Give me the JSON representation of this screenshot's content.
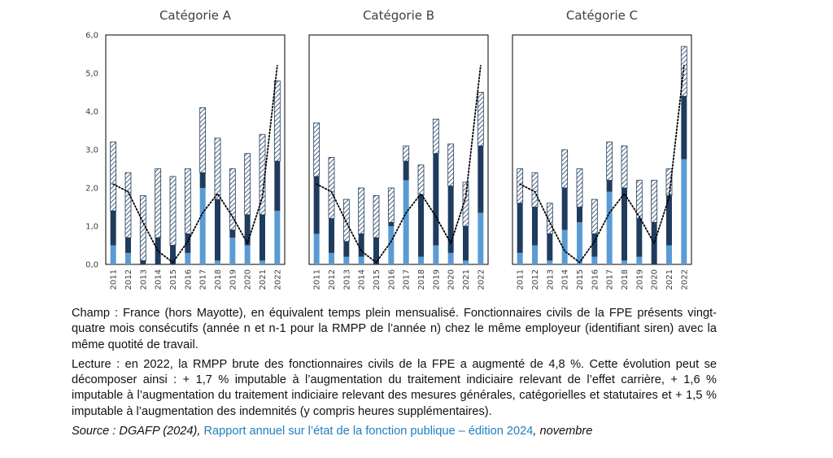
{
  "chart_data": {
    "type": "bar",
    "subtype": "stacked",
    "categories": [
      "2011",
      "2012",
      "2013",
      "2014",
      "2015",
      "2016",
      "2017",
      "2018",
      "2019",
      "2020",
      "2021",
      "2022"
    ],
    "ylim": [
      0,
      6
    ],
    "yticks": [
      "0,0",
      "1,0",
      "2,0",
      "3,0",
      "4,0",
      "5,0",
      "6,0"
    ],
    "colors": {
      "bottom": "#5b9bd5",
      "middle": "#1f3c5e",
      "top_hatch": "#1f3c5e",
      "line": "#000000"
    },
    "panels": [
      {
        "title": "Catégorie A",
        "bottom": [
          0.5,
          0.3,
          0.0,
          0.0,
          0.0,
          0.3,
          2.0,
          0.1,
          0.7,
          0.5,
          0.1,
          1.4
        ],
        "middle": [
          0.9,
          0.4,
          0.1,
          0.7,
          0.5,
          0.5,
          0.4,
          1.6,
          0.2,
          0.8,
          1.2,
          1.3
        ],
        "top": [
          1.8,
          1.7,
          1.7,
          1.8,
          1.8,
          1.7,
          1.7,
          1.6,
          1.6,
          1.6,
          2.1,
          2.1
        ],
        "trend": [
          2.1,
          1.9,
          1.1,
          0.35,
          0.05,
          0.6,
          1.35,
          1.85,
          1.25,
          0.55,
          1.75,
          5.2
        ]
      },
      {
        "title": "Catégorie B",
        "bottom": [
          0.8,
          0.3,
          0.2,
          0.2,
          0.0,
          1.0,
          2.2,
          0.2,
          0.5,
          0.3,
          0.1,
          1.35
        ],
        "middle": [
          1.5,
          0.9,
          0.4,
          0.6,
          0.7,
          0.1,
          0.5,
          1.6,
          2.4,
          1.75,
          0.9,
          1.75
        ],
        "top": [
          1.4,
          1.6,
          1.1,
          1.2,
          1.1,
          0.9,
          0.4,
          0.8,
          0.9,
          1.1,
          1.15,
          1.4
        ],
        "trend": [
          2.1,
          1.9,
          1.1,
          0.35,
          0.05,
          0.6,
          1.35,
          1.85,
          1.25,
          0.55,
          1.75,
          5.2
        ]
      },
      {
        "title": "Catégorie C",
        "bottom": [
          0.3,
          0.5,
          0.1,
          0.9,
          1.1,
          0.2,
          1.9,
          0.1,
          0.2,
          0.0,
          0.5,
          2.75
        ],
        "middle": [
          1.3,
          1.0,
          0.7,
          1.1,
          0.4,
          0.6,
          0.3,
          1.9,
          1.0,
          1.1,
          1.3,
          1.65
        ],
        "top": [
          0.9,
          0.9,
          0.8,
          1.0,
          1.0,
          0.9,
          1.0,
          1.1,
          1.0,
          1.1,
          0.7,
          1.3
        ],
        "trend": [
          2.1,
          1.9,
          1.1,
          0.35,
          0.05,
          0.6,
          1.35,
          1.85,
          1.25,
          0.55,
          1.75,
          5.2
        ]
      }
    ]
  },
  "notes": {
    "champ": "Champ : France (hors Mayotte), en équivalent temps plein mensualisé. Fonctionnaires civils de la FPE présents vingt-quatre mois consécutifs (année n et n-1 pour la RMPP de l’année n) chez le même employeur (identifiant siren) avec la même quotité de travail.",
    "lecture": "Lecture : en 2022, la RMPP brute des fonctionnaires civils de la FPE a augmenté de 4,8 %. Cette évolution peut se décomposer ainsi : + 1,7 % imputable à l’augmentation du traitement indiciaire relevant de l’effet carrière, + 1,6 % imputable à l’augmentation du traitement indiciaire relevant des mesures générales, catégorielles et statutaires et + 1,5 % imputable à l’augmentation des indemnités (y compris heures supplémentaires).",
    "source_prefix": "Source : DGAFP (2024), ",
    "source_link": "Rapport annuel sur l’état de la fonction publique – édition 2024",
    "source_suffix": ", novembre"
  }
}
